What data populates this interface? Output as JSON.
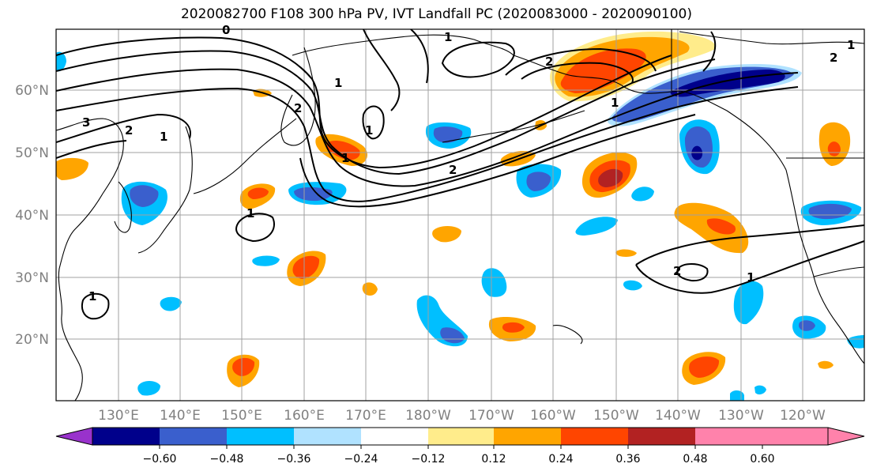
{
  "title": "2020082700 F108 300 hPa PV, IVT Landfall PC (2020083000 - 2020090100)",
  "lat_labels": [
    "60°N",
    "50°N",
    "40°N",
    "30°N",
    "20°N"
  ],
  "lon_labels": [
    "130°E",
    "140°E",
    "150°E",
    "160°E",
    "170°E",
    "180°W",
    "170°W",
    "160°W",
    "150°W",
    "140°W",
    "130°W",
    "120°W"
  ],
  "colorbar": {
    "colors": [
      "#9932CC",
      "#00008B",
      "#3A5FCD",
      "#00BFFF",
      "#B0E2FF",
      "#FFFFFF",
      "#FFEC8B",
      "#FFA500",
      "#FF4500",
      "#B22222",
      "#FF82AB"
    ],
    "tick_labels": [
      "−0.60",
      "−0.48",
      "−0.36",
      "−0.24",
      "−0.12",
      "0.12",
      "0.24",
      "0.36",
      "0.48",
      "0.60"
    ]
  },
  "contour_labels": [
    "0",
    "1",
    "1",
    "2",
    "2",
    "3",
    "1",
    "1",
    "2",
    "1",
    "1",
    "1",
    "2",
    "2",
    "1",
    "2",
    "1",
    "1"
  ]
}
